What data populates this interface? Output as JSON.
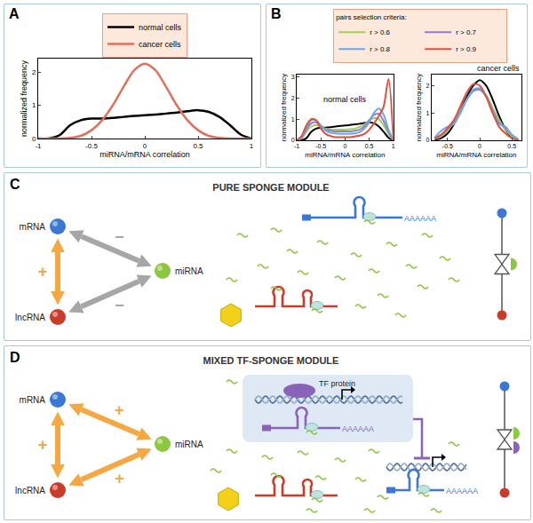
{
  "chart_data": [
    {
      "panel": "A",
      "type": "line",
      "x": [
        -1,
        -0.9,
        -0.8,
        -0.7,
        -0.6,
        -0.5,
        -0.4,
        -0.3,
        -0.2,
        -0.1,
        0,
        0.1,
        0.2,
        0.3,
        0.4,
        0.5,
        0.6,
        0.7,
        0.8,
        0.9,
        1
      ],
      "xlim": [
        -1,
        1
      ],
      "xticks": [
        -1,
        -0.5,
        0,
        0.5,
        1
      ],
      "ylim": [
        0,
        2.4
      ],
      "yticks": [
        0,
        1,
        2
      ],
      "x_label": "miRNA/mRNA correlation",
      "y_label": "normalized frequency",
      "legend": "top",
      "series": [
        {
          "name": "normal cells",
          "color": "#000000",
          "values": [
            0,
            0,
            0.1,
            0.4,
            0.55,
            0.6,
            0.6,
            0.62,
            0.65,
            0.68,
            0.7,
            0.72,
            0.75,
            0.78,
            0.82,
            0.85,
            0.8,
            0.65,
            0.4,
            0.12,
            0
          ]
        },
        {
          "name": "cancer cells",
          "color": "#e0705c",
          "values": [
            0,
            0,
            0,
            0.02,
            0.08,
            0.25,
            0.55,
            1.0,
            1.55,
            2.05,
            2.25,
            2.05,
            1.55,
            1.0,
            0.55,
            0.25,
            0.08,
            0.02,
            0,
            0,
            0
          ]
        }
      ]
    },
    {
      "panel": "B",
      "type": "line",
      "annotations": [
        "normal cells"
      ],
      "legend_title": "pairs selection criteria:",
      "legend": "top",
      "x": [
        -1,
        -0.9,
        -0.8,
        -0.7,
        -0.6,
        -0.5,
        -0.4,
        -0.3,
        -0.2,
        -0.1,
        0,
        0.1,
        0.2,
        0.3,
        0.4,
        0.5,
        0.6,
        0.7,
        0.8,
        0.9,
        1
      ],
      "xlim": [
        -1,
        1
      ],
      "xticks": [
        -1,
        -0.5,
        0,
        0.5,
        1
      ],
      "ylim": [
        0,
        3.1
      ],
      "yticks": [
        0,
        1,
        2,
        3
      ],
      "x_label": "miRNA/mRNA correlation",
      "y_label": "normalized frequency",
      "series": [
        {
          "color": "#000000",
          "values": [
            0,
            0,
            0.1,
            0.4,
            0.55,
            0.6,
            0.6,
            0.62,
            0.65,
            0.68,
            0.7,
            0.72,
            0.75,
            0.78,
            0.82,
            0.85,
            0.8,
            0.65,
            0.4,
            0.12,
            0
          ]
        },
        {
          "name": "r > 0.6",
          "color": "#a2cf5a",
          "values": [
            0,
            0.1,
            0.4,
            0.65,
            0.72,
            0.65,
            0.55,
            0.5,
            0.5,
            0.5,
            0.5,
            0.52,
            0.55,
            0.62,
            0.75,
            0.95,
            1.05,
            1.0,
            0.7,
            0.3,
            0
          ]
        },
        {
          "name": "r > 0.7",
          "color": "#8c80c8",
          "values": [
            0,
            0.1,
            0.5,
            0.8,
            0.85,
            0.7,
            0.5,
            0.45,
            0.42,
            0.42,
            0.42,
            0.42,
            0.45,
            0.5,
            0.65,
            0.95,
            1.2,
            1.25,
            0.9,
            0.4,
            0
          ]
        },
        {
          "name": "r > 0.8",
          "color": "#6fa5e6",
          "values": [
            0,
            0.15,
            0.6,
            0.95,
            0.95,
            0.7,
            0.45,
            0.35,
            0.32,
            0.3,
            0.3,
            0.3,
            0.32,
            0.38,
            0.55,
            0.85,
            1.3,
            1.5,
            1.2,
            0.5,
            0
          ]
        },
        {
          "name": "r > 0.9",
          "color": "#e0503e",
          "values": [
            0,
            0.2,
            0.7,
            1.0,
            0.95,
            0.55,
            0.3,
            0.2,
            0.15,
            0.15,
            0.15,
            0.15,
            0.18,
            0.22,
            0.3,
            0.5,
            0.8,
            1.15,
            1.6,
            2.9,
            0
          ]
        }
      ]
    },
    {
      "type": "line",
      "title": "cancer cells",
      "x": [
        -0.7,
        -0.6,
        -0.5,
        -0.4,
        -0.3,
        -0.2,
        -0.1,
        0,
        0.1,
        0.2,
        0.3,
        0.4,
        0.5,
        0.6
      ],
      "xlim": [
        -0.75,
        0.65
      ],
      "xticks": [
        -0.5,
        0,
        0.5
      ],
      "ylim": [
        0,
        2.4
      ],
      "yticks": [
        0,
        1,
        2
      ],
      "x_label": "miRNA/mRNA correlation",
      "y_label": "normalized frequency",
      "series": [
        {
          "color": "#000000",
          "values": [
            0.02,
            0.08,
            0.25,
            0.6,
            1.1,
            1.6,
            2.0,
            2.2,
            2.0,
            1.5,
            0.9,
            0.4,
            0.12,
            0.02
          ]
        },
        {
          "color": "#a2cf5a",
          "values": [
            0.05,
            0.15,
            0.35,
            0.7,
            1.1,
            1.5,
            1.8,
            1.85,
            1.65,
            1.2,
            0.75,
            0.4,
            0.15,
            0.03
          ]
        },
        {
          "color": "#8c80c8",
          "values": [
            0.08,
            0.2,
            0.4,
            0.65,
            1.05,
            1.5,
            1.8,
            1.85,
            1.6,
            1.1,
            0.65,
            0.45,
            0.2,
            0.03
          ]
        },
        {
          "color": "#6fa5e6",
          "values": [
            0.1,
            0.35,
            0.5,
            0.6,
            1.0,
            1.5,
            1.85,
            1.9,
            1.6,
            1.05,
            0.6,
            0.5,
            0.2,
            0.03
          ]
        },
        {
          "color": "#e0503e",
          "values": [
            0.05,
            0.2,
            0.45,
            0.75,
            1.25,
            1.75,
            2.05,
            2.0,
            1.6,
            1.0,
            0.5,
            0.25,
            0.08,
            0.01
          ]
        }
      ]
    }
  ],
  "diagrams": [
    {
      "panel": "C",
      "title": "PURE SPONGE MODULE",
      "nodes": [
        {
          "label": "mRNA",
          "color": "#3b78d4"
        },
        {
          "label": "miRNA",
          "color": "#8dc63f"
        },
        {
          "label": "lncRNA",
          "color": "#cc3b2a"
        }
      ],
      "edges": [
        {
          "from": "mRNA",
          "to": "lncRNA",
          "sign": "+",
          "color": "#f5a742"
        },
        {
          "from": "mRNA",
          "to": "miRNA",
          "sign": "−",
          "color": "#a6a6a6"
        },
        {
          "from": "miRNA",
          "to": "lncRNA",
          "sign": "−",
          "color": "#a6a6a6"
        }
      ],
      "tail": "AAAAAA"
    },
    {
      "panel": "D",
      "title": "MIXED TF-SPONGE MODULE",
      "nodes": [
        {
          "label": "mRNA",
          "color": "#3b78d4"
        },
        {
          "label": "miRNA",
          "color": "#8dc63f"
        },
        {
          "label": "lncRNA",
          "color": "#cc3b2a"
        }
      ],
      "edges": [
        {
          "from": "mRNA",
          "to": "lncRNA",
          "sign": "+",
          "color": "#f5a742"
        },
        {
          "from": "mRNA",
          "to": "miRNA",
          "sign": "+",
          "color": "#f5a742"
        },
        {
          "from": "miRNA",
          "to": "lncRNA",
          "sign": "+",
          "color": "#f5a742"
        }
      ],
      "tf": {
        "label": "TF protein",
        "color": "#8a63b8"
      },
      "tail": "AAAAAA"
    }
  ]
}
